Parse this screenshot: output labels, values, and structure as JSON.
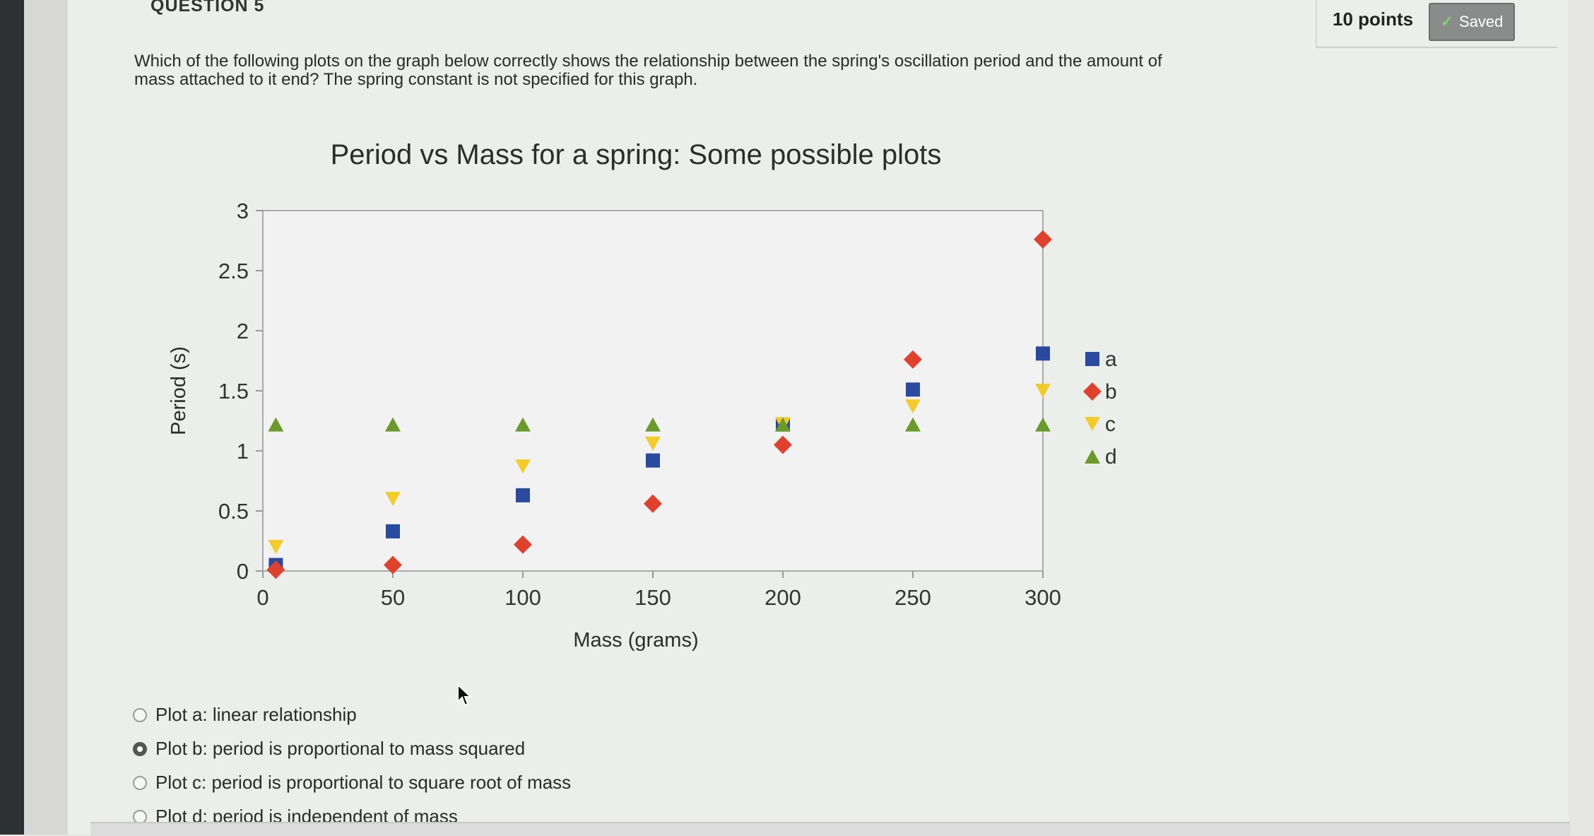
{
  "question": {
    "number_label": "QUESTION 5",
    "points": "10 points",
    "saved_label": "Saved",
    "text": "Which of the following plots on the graph below correctly shows the relationship between the spring's oscillation period and the amount of mass attached to it end? The spring constant is not specified for this graph."
  },
  "chart_data": {
    "type": "scatter",
    "title": "Period vs Mass for a spring: Some possible plots",
    "xlabel": "Mass (grams)",
    "ylabel": "Period (s)",
    "xlim": [
      0,
      300
    ],
    "ylim": [
      0,
      3
    ],
    "xticks": [
      0,
      50,
      100,
      150,
      200,
      250,
      300
    ],
    "yticks": [
      0,
      0.5,
      1,
      1.5,
      2,
      2.5,
      3
    ],
    "legend_position": "right",
    "grid": false,
    "series": [
      {
        "name": "a",
        "marker": "square",
        "color": "#2a4aa0",
        "x": [
          5,
          50,
          100,
          150,
          200,
          250,
          300
        ],
        "y": [
          0.05,
          0.33,
          0.63,
          0.92,
          1.22,
          1.51,
          1.81
        ]
      },
      {
        "name": "b",
        "marker": "diamond",
        "color": "#e0412d",
        "x": [
          5,
          50,
          100,
          150,
          200,
          250,
          300
        ],
        "y": [
          0.01,
          0.05,
          0.22,
          0.56,
          1.05,
          1.76,
          2.76
        ]
      },
      {
        "name": "c",
        "marker": "triangle-down",
        "color": "#f4cc2a",
        "x": [
          5,
          50,
          100,
          150,
          200,
          250,
          300
        ],
        "y": [
          0.2,
          0.6,
          0.87,
          1.06,
          1.22,
          1.37,
          1.5
        ]
      },
      {
        "name": "d",
        "marker": "triangle-up",
        "color": "#6a9a2a",
        "x": [
          5,
          50,
          100,
          150,
          200,
          250,
          300
        ],
        "y": [
          1.22,
          1.22,
          1.22,
          1.22,
          1.22,
          1.22,
          1.22
        ]
      }
    ]
  },
  "options": [
    {
      "label": "Plot a: linear relationship",
      "selected": false
    },
    {
      "label": "Plot b: period is proportional to mass squared",
      "selected": true
    },
    {
      "label": "Plot c: period is proportional to square root of mass",
      "selected": false
    },
    {
      "label": "Plot d: period is independent of mass",
      "selected": false
    }
  ]
}
